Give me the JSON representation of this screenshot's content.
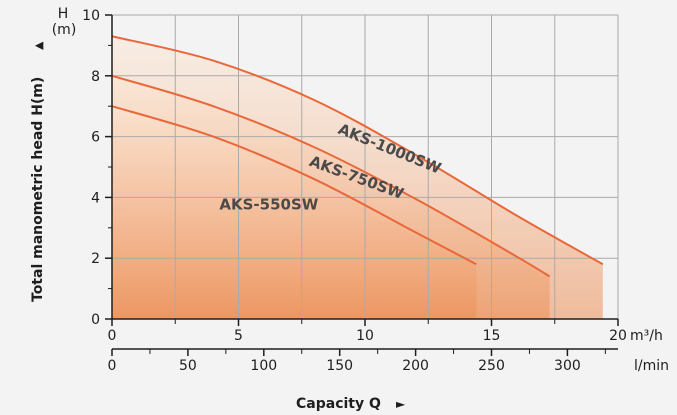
{
  "chart_data": {
    "type": "line",
    "ylabel": "Total manometric head H(m)",
    "ylabel_arrow": "▲",
    "y_unit_top": "H",
    "y_unit_bottom": "(m)",
    "ylim": [
      0,
      10
    ],
    "y_ticks": [
      "0",
      "2",
      "4",
      "6",
      "8",
      "10"
    ],
    "xlabel": "Capacity Q",
    "xlabel_arrow": "►",
    "x_primary": {
      "unit": "m³/h",
      "range": [
        0,
        20
      ],
      "ticks": [
        "0",
        "5",
        "10",
        "15",
        "20"
      ]
    },
    "x_secondary": {
      "unit": "l/min",
      "range": [
        0,
        333.33
      ],
      "ticks": [
        "0",
        "50",
        "100",
        "150",
        "200",
        "250",
        "300"
      ]
    },
    "grid": true,
    "series": [
      {
        "name": "AKS-1000SW",
        "x": [
          0,
          4,
          8,
          12,
          16,
          19.4
        ],
        "y": [
          9.3,
          8.5,
          7.2,
          5.4,
          3.4,
          1.8
        ]
      },
      {
        "name": "AKS-750SW",
        "x": [
          0,
          4,
          8,
          12,
          16,
          17.3
        ],
        "y": [
          8.0,
          7.0,
          5.65,
          3.95,
          2.05,
          1.4
        ]
      },
      {
        "name": "AKS-550SW",
        "x": [
          0,
          4,
          8,
          12,
          14.4
        ],
        "y": [
          7.0,
          6.0,
          4.6,
          2.85,
          1.8
        ]
      }
    ],
    "colors": {
      "line": "#e8683a",
      "fill_dark": "#ec8e55",
      "fill_light": "#fde6d3",
      "axis": "#1e1e1e",
      "grid": "#aaaaaa"
    }
  }
}
